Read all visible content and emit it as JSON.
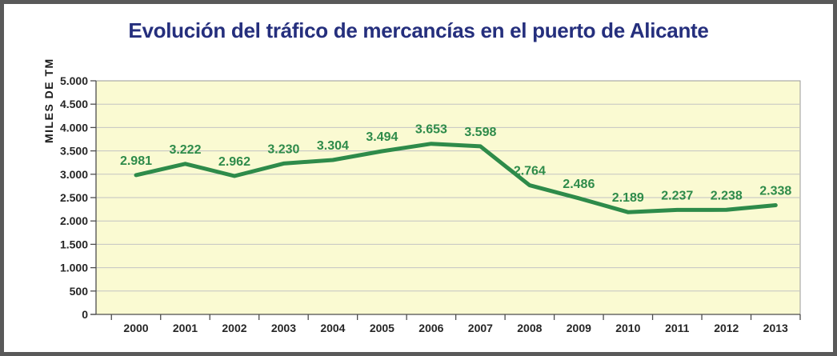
{
  "chart_data": {
    "type": "line",
    "title": "Evolución del tráfico de mercancías en el puerto de Alicante",
    "ylabel": "MILES DE TM",
    "xlabel": "",
    "categories": [
      "2000",
      "2001",
      "2002",
      "2003",
      "2004",
      "2005",
      "2006",
      "2007",
      "2008",
      "2009",
      "2010",
      "2011",
      "2012",
      "2013"
    ],
    "series": [
      {
        "name": "Tráfico de mercancías",
        "values": [
          2981,
          3222,
          2962,
          3230,
          3304,
          3494,
          3653,
          3598,
          2764,
          2486,
          2189,
          2237,
          2238,
          2338
        ],
        "point_labels": [
          "2.981",
          "3.222",
          "2.962",
          "3.230",
          "3.304",
          "3.494",
          "3.653",
          "3.598",
          "2.764",
          "2.486",
          "2.189",
          "2.237",
          "2.238",
          "2.338"
        ]
      }
    ],
    "ylim": [
      0,
      5000
    ],
    "ytick_step": 500,
    "ytick_labels": [
      "0",
      "500",
      "1.000",
      "1.500",
      "2.000",
      "2.500",
      "3.000",
      "3.500",
      "4.000",
      "4.500",
      "5.000"
    ],
    "grid": true,
    "legend_position": "none"
  },
  "colors": {
    "title": "#252f7d",
    "line": "#2e8b4a",
    "data_label": "#2e8b4a",
    "plot_bg": "#fafad2",
    "plot_border": "#9a9a9a",
    "grid": "#c3c3c3",
    "axis_line": "#4d4d4d",
    "axis_text": "#262626",
    "frame_border": "#595959"
  }
}
